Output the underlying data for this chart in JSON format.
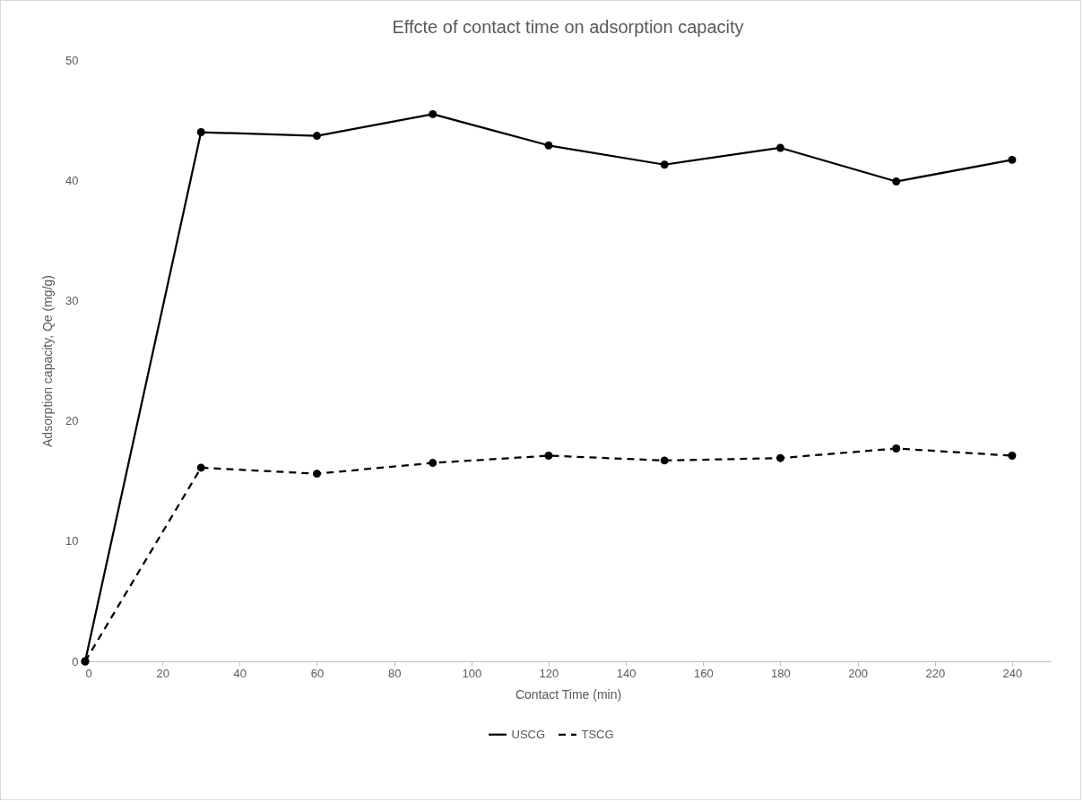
{
  "chart_data": {
    "type": "line",
    "title": "Effcte of contact time on adsorption capacity",
    "xlabel": "Contact Time (min)",
    "ylabel": "Adsorption capacity, Qe (mg/g)",
    "x": [
      0,
      30,
      60,
      90,
      120,
      150,
      180,
      210,
      240
    ],
    "series": [
      {
        "name": "USCG",
        "color": "#000000",
        "line_style": "solid",
        "values": [
          0,
          44.0,
          43.7,
          45.5,
          42.9,
          41.3,
          42.7,
          39.9,
          41.7
        ]
      },
      {
        "name": "TSCG",
        "color": "#000000",
        "line_style": "dashed",
        "values": [
          0,
          16.1,
          15.6,
          16.5,
          17.1,
          16.7,
          16.9,
          17.7,
          17.1
        ]
      }
    ],
    "xlim": [
      0,
      250
    ],
    "xticks": [
      0,
      20,
      40,
      60,
      80,
      100,
      120,
      140,
      160,
      180,
      200,
      220,
      240
    ],
    "ylim": [
      0,
      50
    ],
    "yticks": [
      0,
      10,
      20,
      30,
      40,
      50
    ],
    "grid": false,
    "legend": "bottom",
    "marker": "circle"
  }
}
